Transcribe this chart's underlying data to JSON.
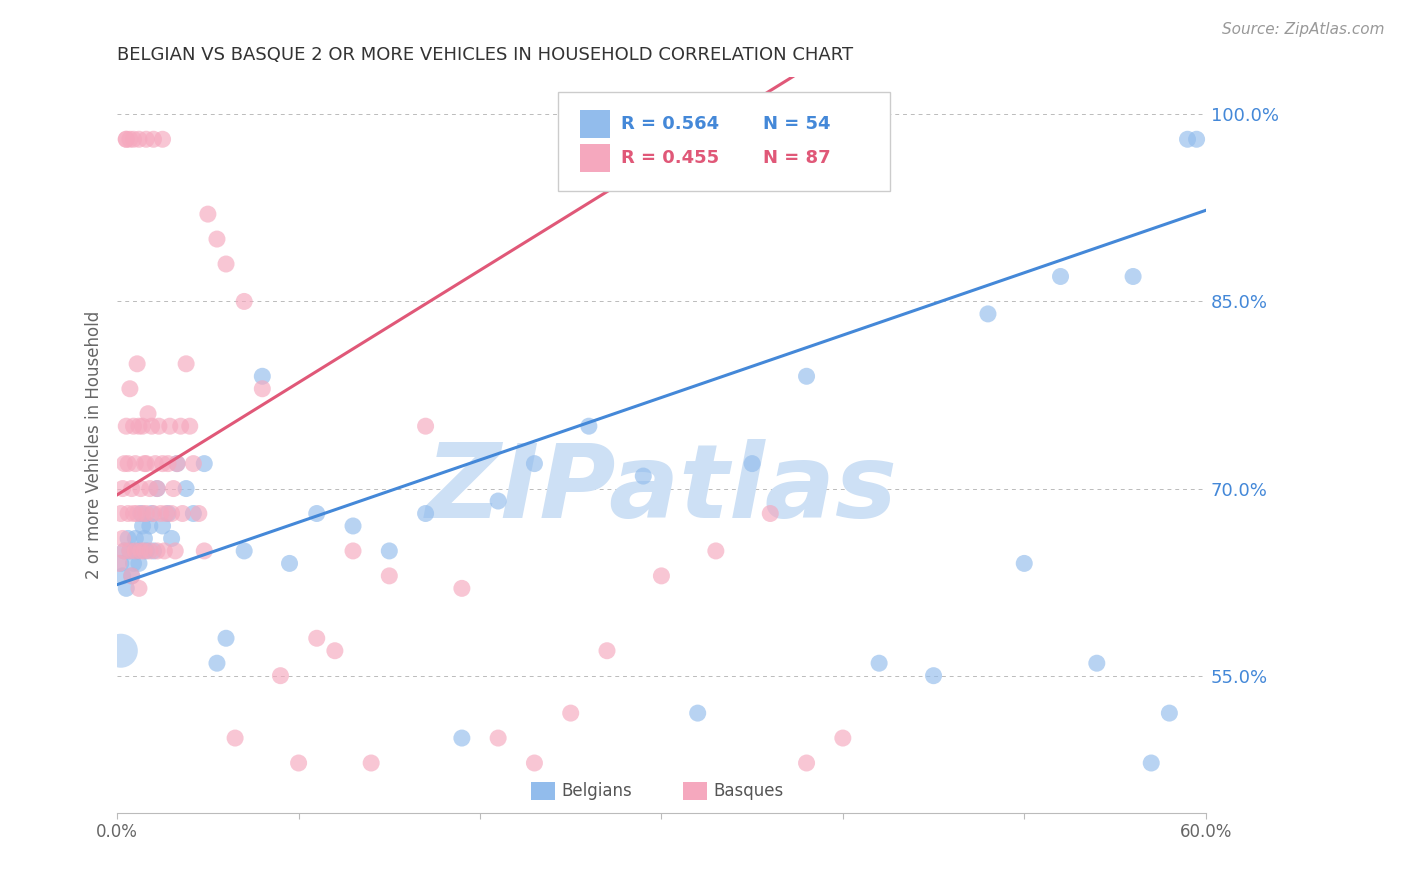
{
  "title": "BELGIAN VS BASQUE 2 OR MORE VEHICLES IN HOUSEHOLD CORRELATION CHART",
  "source": "Source: ZipAtlas.com",
  "ylabel": "2 or more Vehicles in Household",
  "xlim": [
    0.0,
    0.6
  ],
  "ylim": [
    0.44,
    1.03
  ],
  "xticks": [
    0.0,
    0.1,
    0.2,
    0.3,
    0.4,
    0.5,
    0.6
  ],
  "xticklabels": [
    "0.0%",
    "",
    "",
    "",
    "",
    "",
    "60.0%"
  ],
  "yticks_right": [
    0.55,
    0.7,
    0.85,
    1.0
  ],
  "ytick_right_labels": [
    "55.0%",
    "70.0%",
    "85.0%",
    "100.0%"
  ],
  "belgian_R": 0.564,
  "belgian_N": 54,
  "basque_R": 0.455,
  "basque_N": 87,
  "blue_color": "#92bcec",
  "pink_color": "#f5a8be",
  "blue_line_color": "#4488d8",
  "pink_line_color": "#e05878",
  "legend_blue_text_color": "#4488d8",
  "legend_pink_text_color": "#e05878",
  "right_axis_color": "#4488d8",
  "watermark": "ZIPatlas",
  "watermark_color": "#cde0f5",
  "title_color": "#333333",
  "grid_color": "#bbbbbb",
  "bel_x": [
    0.002,
    0.003,
    0.004,
    0.005,
    0.006,
    0.007,
    0.008,
    0.009,
    0.01,
    0.011,
    0.012,
    0.013,
    0.014,
    0.015,
    0.016,
    0.018,
    0.019,
    0.02,
    0.022,
    0.025,
    0.028,
    0.03,
    0.033,
    0.038,
    0.042,
    0.048,
    0.055,
    0.06,
    0.07,
    0.08,
    0.095,
    0.11,
    0.13,
    0.15,
    0.17,
    0.19,
    0.21,
    0.23,
    0.26,
    0.29,
    0.32,
    0.35,
    0.38,
    0.42,
    0.45,
    0.48,
    0.5,
    0.52,
    0.54,
    0.56,
    0.57,
    0.58,
    0.59,
    0.595
  ],
  "bel_y": [
    0.64,
    0.63,
    0.65,
    0.62,
    0.66,
    0.65,
    0.63,
    0.64,
    0.66,
    0.65,
    0.64,
    0.68,
    0.67,
    0.66,
    0.65,
    0.67,
    0.68,
    0.65,
    0.7,
    0.67,
    0.68,
    0.66,
    0.72,
    0.7,
    0.68,
    0.72,
    0.56,
    0.58,
    0.65,
    0.79,
    0.64,
    0.68,
    0.67,
    0.65,
    0.68,
    0.5,
    0.69,
    0.72,
    0.75,
    0.71,
    0.52,
    0.72,
    0.79,
    0.56,
    0.55,
    0.84,
    0.64,
    0.87,
    0.56,
    0.87,
    0.48,
    0.52,
    0.98,
    0.98
  ],
  "bas_x": [
    0.001,
    0.002,
    0.003,
    0.003,
    0.004,
    0.004,
    0.005,
    0.005,
    0.006,
    0.006,
    0.007,
    0.007,
    0.008,
    0.008,
    0.009,
    0.009,
    0.01,
    0.01,
    0.011,
    0.011,
    0.012,
    0.012,
    0.013,
    0.013,
    0.014,
    0.014,
    0.015,
    0.015,
    0.016,
    0.016,
    0.017,
    0.018,
    0.018,
    0.019,
    0.02,
    0.021,
    0.022,
    0.022,
    0.023,
    0.024,
    0.025,
    0.026,
    0.027,
    0.028,
    0.029,
    0.03,
    0.031,
    0.032,
    0.033,
    0.035,
    0.036,
    0.038,
    0.04,
    0.042,
    0.045,
    0.048,
    0.05,
    0.055,
    0.06,
    0.065,
    0.07,
    0.08,
    0.09,
    0.1,
    0.11,
    0.12,
    0.13,
    0.14,
    0.15,
    0.17,
    0.19,
    0.21,
    0.23,
    0.25,
    0.27,
    0.3,
    0.33,
    0.36,
    0.38,
    0.4,
    0.005,
    0.007,
    0.009,
    0.012,
    0.016,
    0.02,
    0.025
  ],
  "bas_y": [
    0.64,
    0.68,
    0.7,
    0.66,
    0.72,
    0.65,
    0.75,
    0.98,
    0.68,
    0.72,
    0.65,
    0.78,
    0.7,
    0.63,
    0.75,
    0.68,
    0.65,
    0.72,
    0.68,
    0.8,
    0.75,
    0.62,
    0.7,
    0.65,
    0.68,
    0.75,
    0.72,
    0.65,
    0.68,
    0.72,
    0.76,
    0.65,
    0.7,
    0.75,
    0.68,
    0.72,
    0.65,
    0.7,
    0.75,
    0.68,
    0.72,
    0.65,
    0.68,
    0.72,
    0.75,
    0.68,
    0.7,
    0.65,
    0.72,
    0.75,
    0.68,
    0.8,
    0.75,
    0.72,
    0.68,
    0.65,
    0.92,
    0.9,
    0.88,
    0.5,
    0.85,
    0.78,
    0.55,
    0.48,
    0.58,
    0.57,
    0.65,
    0.48,
    0.63,
    0.75,
    0.62,
    0.5,
    0.48,
    0.52,
    0.57,
    0.63,
    0.65,
    0.68,
    0.48,
    0.5,
    0.98,
    0.98,
    0.98,
    0.98,
    0.98,
    0.98,
    0.98
  ],
  "bel_large_x": [
    0.002
  ],
  "bel_large_y": [
    0.57
  ],
  "bel_large_size": 600
}
